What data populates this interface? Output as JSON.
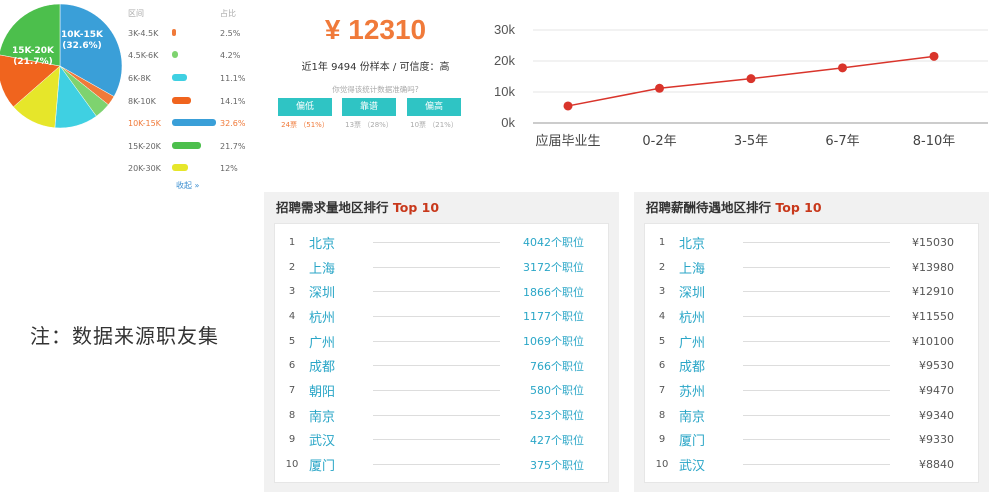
{
  "pie": {
    "label_top": "10K-15K",
    "label_top_pct": "(32.6%)",
    "label_left": "15K-20K",
    "label_left_pct": "(21.7%)"
  },
  "salary_table": {
    "headers": [
      "区间",
      "占比"
    ],
    "rows": [
      {
        "range": "3K-4.5K",
        "pct": "2.5%",
        "value": 2.5,
        "color": "#f07a3a"
      },
      {
        "range": "4.5K-6K",
        "pct": "4.2%",
        "value": 4.2,
        "color": "#7ed36f"
      },
      {
        "range": "6K-8K",
        "pct": "11.1%",
        "value": 11.1,
        "color": "#3fd0e2"
      },
      {
        "range": "8K-10K",
        "pct": "14.1%",
        "value": 14.1,
        "color": "#f0641e"
      },
      {
        "range": "10K-15K",
        "pct": "32.6%",
        "value": 32.6,
        "color": "#3a9fd8"
      },
      {
        "range": "15K-20K",
        "pct": "21.7%",
        "value": 21.7,
        "color": "#4cbf4c"
      },
      {
        "range": "20K-30K",
        "pct": "12%",
        "value": 12,
        "color": "#e6e62a"
      }
    ],
    "collapse_label": "收起 »"
  },
  "avg": {
    "price": "¥ 12310",
    "subtitle": "近1年 9494 份样本 / 可信度：高",
    "question": "你觉得该统计数据准确吗?",
    "votes": [
      {
        "label": "偏低",
        "count": "24票 （51%）"
      },
      {
        "label": "靠谱",
        "count": "13票 （28%）"
      },
      {
        "label": "偏高",
        "count": "10票 （21%）"
      }
    ]
  },
  "chart_data": {
    "type": "line",
    "categories": [
      "应届毕业生",
      "0-2年",
      "3-5年",
      "6-7年",
      "8-10年"
    ],
    "values": [
      5500,
      11200,
      14300,
      17800,
      21500
    ],
    "ylim": [
      0,
      30000
    ],
    "yticks": [
      "0k",
      "10k",
      "20k",
      "30k"
    ],
    "ytick_values": [
      0,
      10000,
      20000,
      30000
    ],
    "color": "#d9342b"
  },
  "rank_demand": {
    "title": "招聘需求量地区排行",
    "title_hl": "Top 10",
    "rows": [
      {
        "idx": "1",
        "city": "北京",
        "value": "4042个职位"
      },
      {
        "idx": "2",
        "city": "上海",
        "value": "3172个职位"
      },
      {
        "idx": "3",
        "city": "深圳",
        "value": "1866个职位"
      },
      {
        "idx": "4",
        "city": "杭州",
        "value": "1177个职位"
      },
      {
        "idx": "5",
        "city": "广州",
        "value": "1069个职位"
      },
      {
        "idx": "6",
        "city": "成都",
        "value": "766个职位"
      },
      {
        "idx": "7",
        "city": "朝阳",
        "value": "580个职位"
      },
      {
        "idx": "8",
        "city": "南京",
        "value": "523个职位"
      },
      {
        "idx": "9",
        "city": "武汉",
        "value": "427个职位"
      },
      {
        "idx": "10",
        "city": "厦门",
        "value": "375个职位"
      }
    ]
  },
  "rank_salary": {
    "title": "招聘薪酬待遇地区排行",
    "title_hl": "Top 10",
    "rows": [
      {
        "idx": "1",
        "city": "北京",
        "value": "¥15030"
      },
      {
        "idx": "2",
        "city": "上海",
        "value": "¥13980"
      },
      {
        "idx": "3",
        "city": "深圳",
        "value": "¥12910"
      },
      {
        "idx": "4",
        "city": "杭州",
        "value": "¥11550"
      },
      {
        "idx": "5",
        "city": "广州",
        "value": "¥10100"
      },
      {
        "idx": "6",
        "city": "成都",
        "value": "¥9530"
      },
      {
        "idx": "7",
        "city": "苏州",
        "value": "¥9470"
      },
      {
        "idx": "8",
        "city": "南京",
        "value": "¥9340"
      },
      {
        "idx": "9",
        "city": "厦门",
        "value": "¥9330"
      },
      {
        "idx": "10",
        "city": "武汉",
        "value": "¥8840"
      }
    ]
  },
  "note": "注：数据来源职友集"
}
